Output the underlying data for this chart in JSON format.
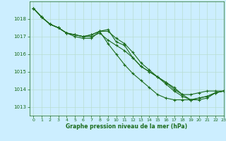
{
  "title": "Graphe pression niveau de la mer (hPa)",
  "bg_color": "#cceeff",
  "grid_color": "#b8ddd0",
  "line_color": "#1a6b1a",
  "xlim": [
    -0.5,
    23
  ],
  "ylim": [
    1012.5,
    1019.0
  ],
  "yticks": [
    1013,
    1014,
    1015,
    1016,
    1017,
    1018
  ],
  "xticks": [
    0,
    1,
    2,
    3,
    4,
    5,
    6,
    7,
    8,
    9,
    10,
    11,
    12,
    13,
    14,
    15,
    16,
    17,
    18,
    19,
    20,
    21,
    22,
    23
  ],
  "series": [
    {
      "x": [
        0,
        1,
        2,
        3,
        4,
        5,
        6,
        7,
        8,
        9,
        10,
        11,
        12,
        13,
        14,
        15,
        16,
        17,
        18,
        19,
        20,
        21,
        22,
        23
      ],
      "y": [
        1018.6,
        1018.1,
        1017.7,
        1017.5,
        1017.2,
        1017.1,
        1017.0,
        1017.0,
        1017.2,
        1016.8,
        1016.5,
        1016.2,
        1015.8,
        1015.3,
        1015.0,
        1014.7,
        1014.3,
        1013.9,
        1013.6,
        1013.4,
        1013.5,
        1013.6,
        1013.8,
        1013.9
      ]
    },
    {
      "x": [
        0,
        1,
        2,
        3,
        4,
        5,
        6,
        7,
        8,
        9,
        10,
        11,
        12,
        13,
        14,
        15,
        16,
        17,
        18,
        19,
        20,
        21,
        22,
        23
      ],
      "y": [
        1018.6,
        1018.1,
        1017.7,
        1017.5,
        1017.2,
        1017.0,
        1016.9,
        1016.9,
        1017.3,
        1016.6,
        1016.0,
        1015.4,
        1014.9,
        1014.5,
        1014.1,
        1013.7,
        1013.5,
        1013.4,
        1013.4,
        1013.4,
        1013.5,
        1013.6,
        1013.8,
        1013.9
      ]
    },
    {
      "x": [
        0,
        1,
        2,
        3,
        4,
        5,
        6,
        7,
        8,
        9,
        10,
        11,
        12,
        13,
        14,
        15,
        16,
        17,
        18,
        19,
        20,
        21,
        22,
        23
      ],
      "y": [
        1018.6,
        1018.1,
        1017.7,
        1017.5,
        1017.2,
        1017.1,
        1017.0,
        1017.1,
        1017.3,
        1017.3,
        1016.9,
        1016.6,
        1016.1,
        1015.5,
        1015.1,
        1014.7,
        1014.4,
        1014.0,
        1013.7,
        1013.7,
        1013.8,
        1013.9,
        1013.9,
        1013.9
      ]
    },
    {
      "x": [
        0,
        1,
        2,
        3,
        4,
        5,
        6,
        7,
        8,
        9,
        10,
        11,
        12,
        13,
        14,
        15,
        16,
        17,
        18,
        19,
        20,
        21,
        22,
        23
      ],
      "y": [
        1018.6,
        1018.1,
        1017.7,
        1017.5,
        1017.2,
        1017.1,
        1017.0,
        1017.1,
        1017.3,
        1017.4,
        1016.7,
        1016.5,
        1015.8,
        1015.3,
        1015.0,
        1014.7,
        1014.4,
        1014.1,
        1013.7,
        1013.4,
        1013.4,
        1013.5,
        1013.8,
        1013.9
      ]
    }
  ]
}
